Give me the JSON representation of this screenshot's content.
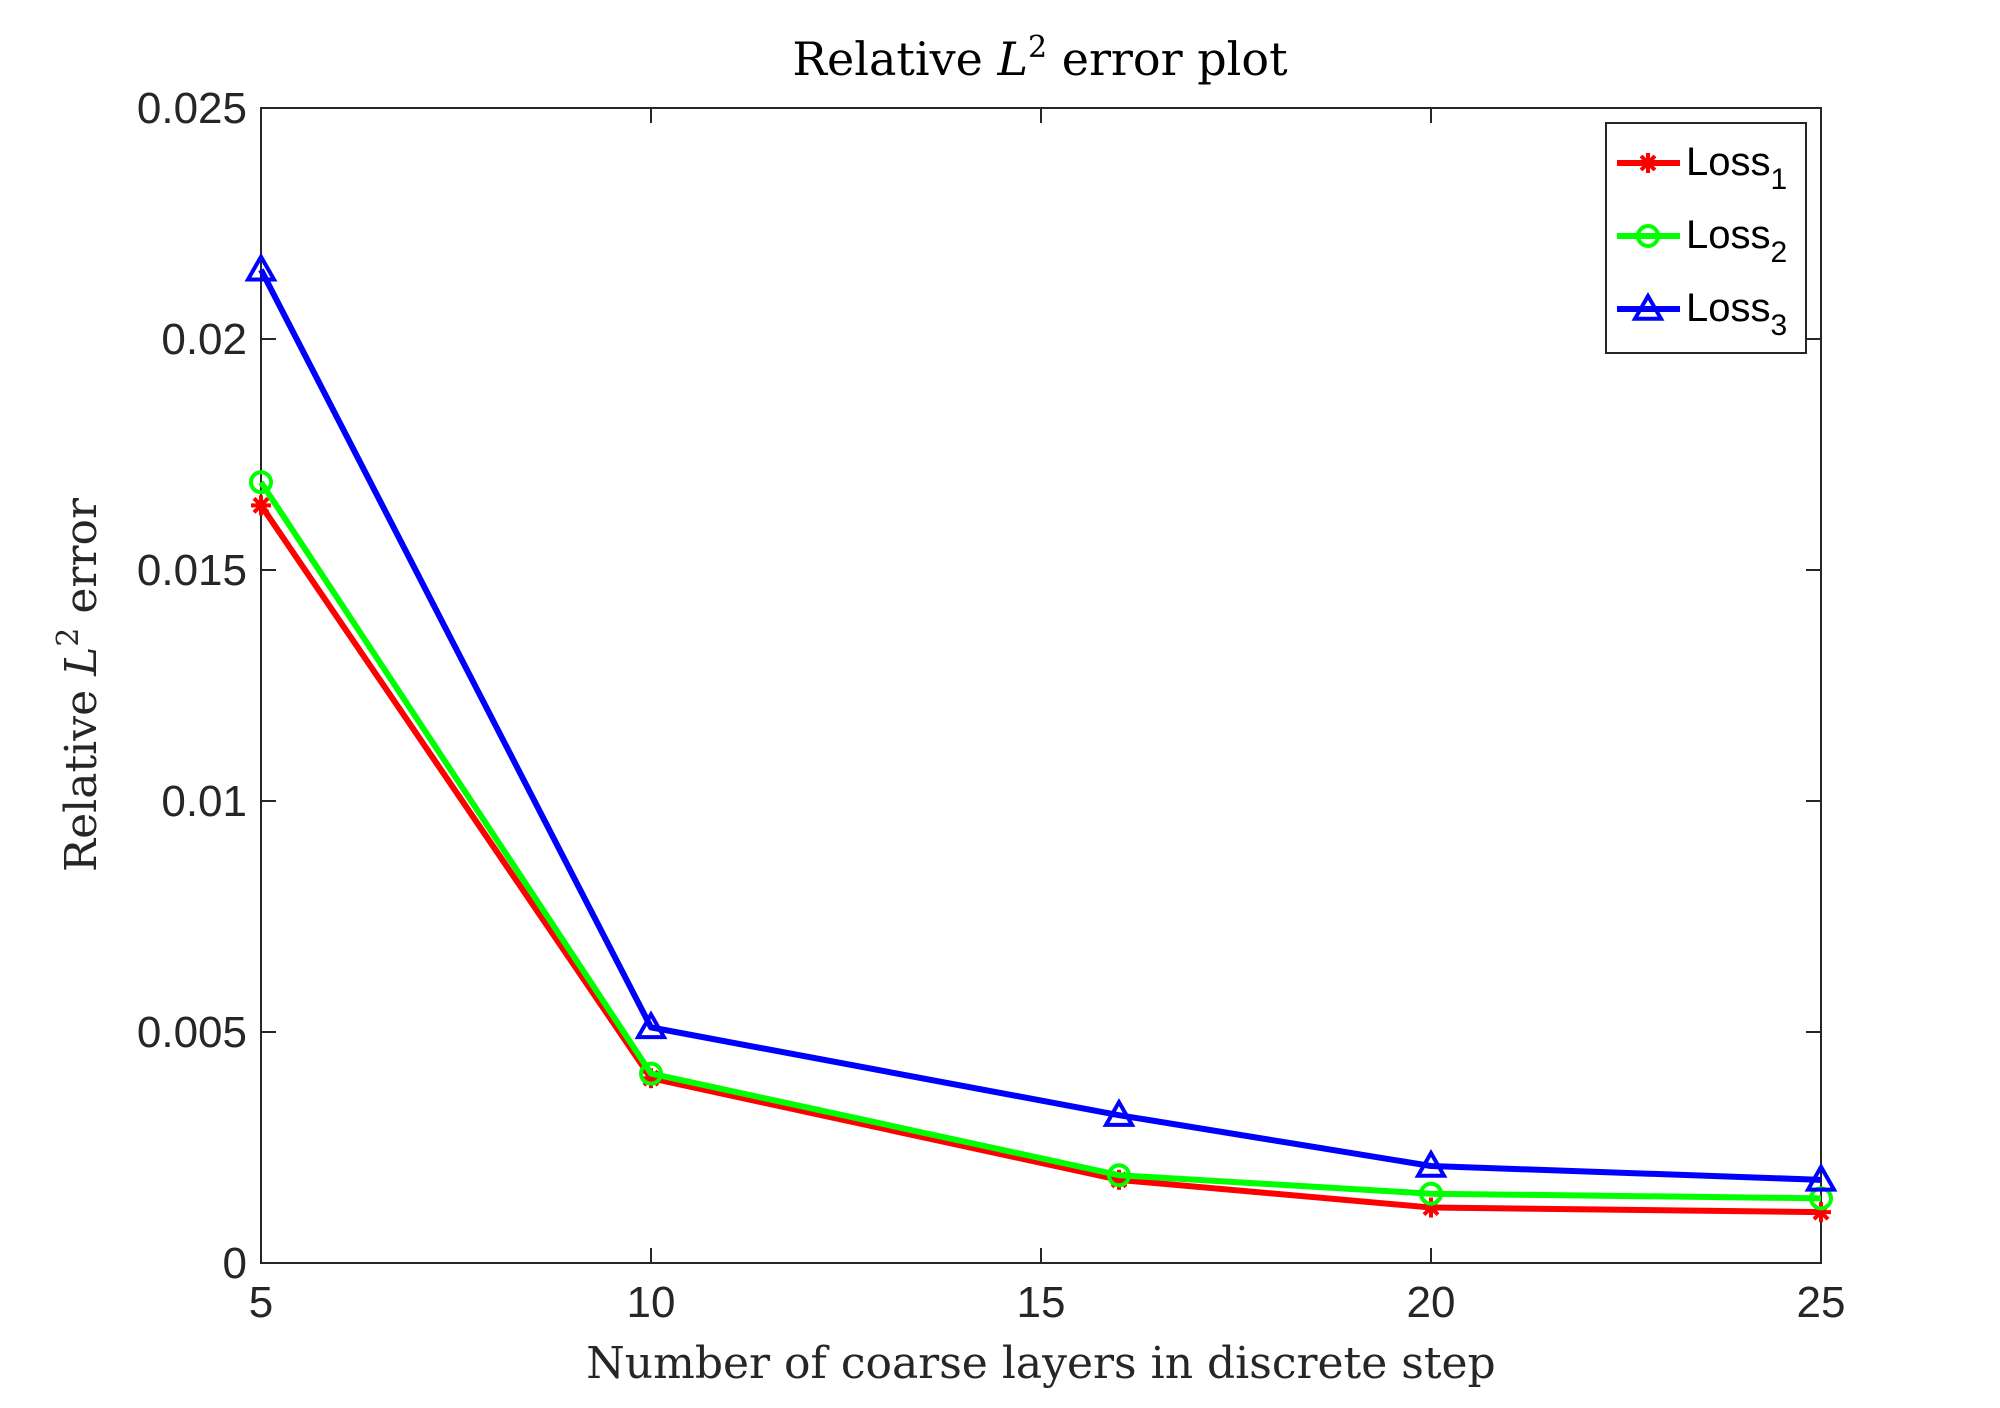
{
  "chart_data": {
    "type": "line",
    "title": {
      "prefix": "Relative ",
      "var": "L",
      "sup": "2",
      "suffix": " error plot"
    },
    "xlabel": "Number of coarse layers in discrete step",
    "ylabel": {
      "prefix": "Relative ",
      "var": "L",
      "sup": "2",
      "suffix": " error"
    },
    "xlim": [
      5,
      25
    ],
    "ylim": [
      0,
      0.025
    ],
    "xticks": [
      5,
      10,
      15,
      20,
      25
    ],
    "xtick_labels": [
      "5",
      "10",
      "15",
      "20",
      "25"
    ],
    "yticks": [
      0,
      0.005,
      0.01,
      0.015,
      0.02,
      0.025
    ],
    "ytick_labels": [
      "0",
      "0.005",
      "0.01",
      "0.015",
      "0.02",
      "0.025"
    ],
    "grid": false,
    "legend_position": "top-right",
    "x": [
      5,
      10,
      16,
      20,
      25
    ],
    "series": [
      {
        "name": "Loss",
        "subscript": "1",
        "color": "#ff0000",
        "marker": "asterisk",
        "values": [
          0.0164,
          0.004,
          0.0018,
          0.0012,
          0.0011
        ]
      },
      {
        "name": "Loss",
        "subscript": "2",
        "color": "#00ff00",
        "marker": "circle",
        "values": [
          0.0169,
          0.0041,
          0.0019,
          0.0015,
          0.0014
        ]
      },
      {
        "name": "Loss",
        "subscript": "3",
        "color": "#0000ff",
        "marker": "triangle",
        "values": [
          0.0215,
          0.0051,
          0.0032,
          0.0021,
          0.0018
        ]
      }
    ]
  }
}
